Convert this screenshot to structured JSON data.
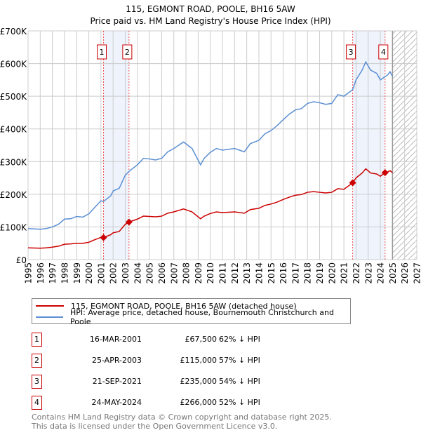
{
  "chart_data": {
    "type": "line",
    "title": "115, EGMONT ROAD, POOLE, BH16 5AW",
    "subtitle": "Price paid vs. HM Land Registry's House Price Index (HPI)",
    "xlim": [
      1995,
      2027
    ],
    "ylim": [
      0,
      700000
    ],
    "y_ticks": [
      0,
      100000,
      200000,
      300000,
      400000,
      500000,
      600000,
      700000
    ],
    "y_tick_labels": [
      "£0",
      "£100K",
      "£200K",
      "£300K",
      "£400K",
      "£500K",
      "£600K",
      "£700K"
    ],
    "x_ticks": [
      1995,
      1996,
      1997,
      1998,
      1999,
      2000,
      2001,
      2002,
      2003,
      2004,
      2005,
      2006,
      2007,
      2008,
      2009,
      2010,
      2011,
      2012,
      2013,
      2014,
      2015,
      2016,
      2017,
      2018,
      2019,
      2020,
      2021,
      2022,
      2023,
      2024,
      2025,
      2026,
      2027
    ],
    "grid": true,
    "forecast_hatch_from": 2025,
    "x": [
      1995,
      1996,
      1996.5,
      1997,
      1997.5,
      1998,
      1998.5,
      1999,
      1999.5,
      2000,
      2000.5,
      2001,
      2001.21,
      2001.8,
      2002,
      2002.5,
      2003,
      2003.31,
      2004,
      2004.5,
      2005,
      2005.5,
      2006,
      2006.5,
      2007,
      2007.8,
      2008.5,
      2009.2,
      2009.5,
      2010,
      2010.5,
      2011,
      2012,
      2012.8,
      2013.3,
      2014,
      2014.5,
      2015,
      2015.5,
      2016,
      2016.5,
      2017,
      2017.5,
      2018,
      2018.5,
      2019,
      2019.5,
      2020,
      2020.5,
      2021,
      2021.72,
      2022,
      2022.5,
      2022.8,
      2023.2,
      2023.7,
      2024,
      2024.39,
      2024.6,
      2024.8,
      2025
    ],
    "series": [
      {
        "name": "115, EGMONT ROAD, POOLE, BH16 5AW (detached house)",
        "color": "#cc0000",
        "values": [
          36,
          35,
          36,
          38,
          41,
          47,
          48,
          50,
          50,
          53,
          61,
          68,
          67.5,
          76,
          82,
          86,
          108,
          115,
          124,
          133,
          132,
          131,
          133,
          142,
          146,
          155,
          146,
          125,
          133,
          141,
          146,
          144,
          146,
          142,
          153,
          157,
          166,
          170,
          176,
          184,
          191,
          197,
          199,
          206,
          208,
          206,
          204,
          206,
          217,
          215,
          235,
          250,
          265,
          278,
          265,
          262,
          255,
          266,
          268,
          272,
          266
        ]
      },
      {
        "name": "HPI: Average price, detached house, Bournemouth Christchurch and Poole",
        "color": "#5b8fd4",
        "values": [
          95,
          93,
          95,
          100,
          108,
          124,
          125,
          132,
          130,
          140,
          160,
          180,
          178,
          195,
          210,
          218,
          258,
          270,
          290,
          310,
          308,
          305,
          310,
          330,
          340,
          360,
          340,
          290,
          310,
          328,
          340,
          335,
          340,
          330,
          355,
          365,
          385,
          395,
          410,
          428,
          445,
          458,
          462,
          478,
          483,
          480,
          475,
          478,
          505,
          500,
          520,
          550,
          580,
          605,
          580,
          570,
          550,
          560,
          565,
          575,
          560
        ]
      }
    ],
    "value_unit": "thousands GBP",
    "bands": [
      [
        2001.21,
        2003.31
      ],
      [
        2021.72,
        2024.39
      ]
    ],
    "sales": [
      {
        "label": "1",
        "x": 2001.21,
        "value": 67500,
        "date": "16-MAR-2001",
        "price": "£67,500",
        "hpi": "62% ↓ HPI"
      },
      {
        "label": "2",
        "x": 2003.31,
        "value": 115000,
        "date": "25-APR-2003",
        "price": "£115,000",
        "hpi": "57% ↓ HPI"
      },
      {
        "label": "3",
        "x": 2021.72,
        "value": 235000,
        "date": "21-SEP-2021",
        "price": "£235,000",
        "hpi": "54% ↓ HPI"
      },
      {
        "label": "4",
        "x": 2024.39,
        "value": 266000,
        "date": "24-MAY-2024",
        "price": "£266,000",
        "hpi": "52% ↓ HPI"
      }
    ]
  },
  "footer": [
    "Contains HM Land Registry data © Crown copyright and database right 2025.",
    "This data is licensed under the Open Government Licence v3.0."
  ]
}
